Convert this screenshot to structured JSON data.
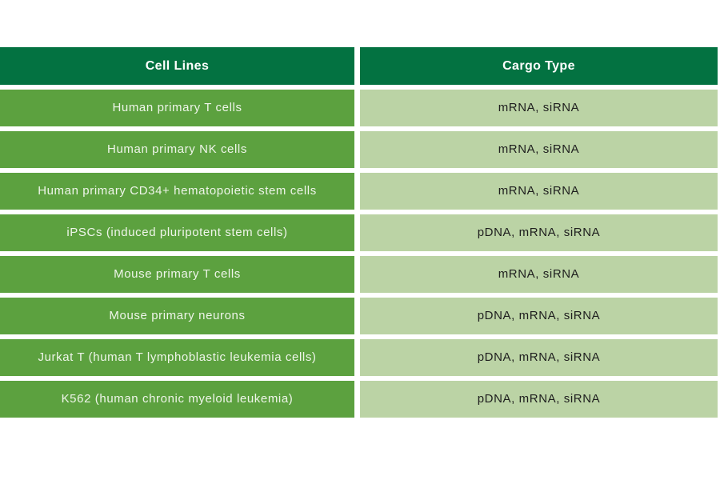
{
  "chart_data": {
    "type": "table",
    "columns": [
      "Cell Lines",
      "Cargo Type"
    ],
    "rows": [
      {
        "cell_line": "Human primary T cells",
        "cargo_type": "mRNA, siRNA"
      },
      {
        "cell_line": "Human primary NK cells",
        "cargo_type": "mRNA, siRNA"
      },
      {
        "cell_line": "Human primary CD34+ hematopoietic stem cells",
        "cargo_type": "mRNA, siRNA"
      },
      {
        "cell_line": "iPSCs (induced pluripotent stem cells)",
        "cargo_type": "pDNA, mRNA, siRNA"
      },
      {
        "cell_line": "Mouse primary T cells",
        "cargo_type": "mRNA, siRNA"
      },
      {
        "cell_line": "Mouse primary neurons",
        "cargo_type": "pDNA, mRNA, siRNA"
      },
      {
        "cell_line": "Jurkat T (human T lymphoblastic leukemia cells)",
        "cargo_type": "pDNA, mRNA, siRNA"
      },
      {
        "cell_line": "K562 (human chronic myeloid leukemia)",
        "cargo_type": "pDNA, mRNA, siRNA"
      }
    ],
    "layout": {
      "legend": "none",
      "grid": "off"
    }
  },
  "colors": {
    "header_background": "#037241",
    "header_text": "#FFFFFF",
    "cell_line_background": "#5CA13F",
    "cell_line_text": "#EFF5EA",
    "cargo_background": "#BBD3A5",
    "cargo_text": "#1E1E1E",
    "page_background": "#FFFFFF"
  }
}
